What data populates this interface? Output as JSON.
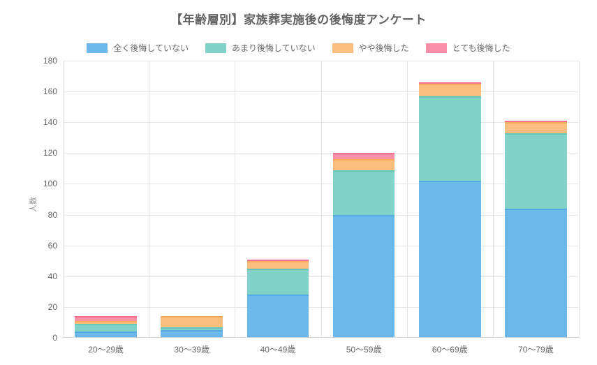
{
  "chart_data": {
    "type": "bar",
    "stacked": true,
    "title": "【年齢層別】家族葬実施後の後悔度アンケート",
    "ylabel": "人数",
    "xlabel": "",
    "ylim": [
      0,
      180
    ],
    "ytick_step": 20,
    "yticks": [
      0,
      20,
      40,
      60,
      80,
      100,
      120,
      140,
      160,
      180
    ],
    "grid": true,
    "legend_position": "top",
    "categories": [
      "20〜29歳",
      "30〜39歳",
      "40〜49歳",
      "50〜59歳",
      "60〜69歳",
      "70〜79歳"
    ],
    "series": [
      {
        "name": "全く後悔していない",
        "color": "#6bb8ec",
        "border_color": "#55a9e3",
        "values": [
          4,
          5,
          28,
          80,
          102,
          84
        ]
      },
      {
        "name": "あまり後悔していない",
        "color": "#81d3ca",
        "border_color": "#64c7bb",
        "values": [
          5,
          2,
          17,
          29,
          55,
          49
        ]
      },
      {
        "name": "やや後悔した",
        "color": "#fbbe7d",
        "border_color": "#f9ac5c",
        "values": [
          2,
          7,
          5,
          7,
          8,
          7
        ]
      },
      {
        "name": "とても後悔した",
        "color": "#f98fa8",
        "border_color": "#f7708f",
        "values": [
          3,
          0,
          1,
          4,
          1,
          1
        ]
      }
    ],
    "totals": [
      14,
      14,
      51,
      120,
      166,
      141
    ]
  }
}
